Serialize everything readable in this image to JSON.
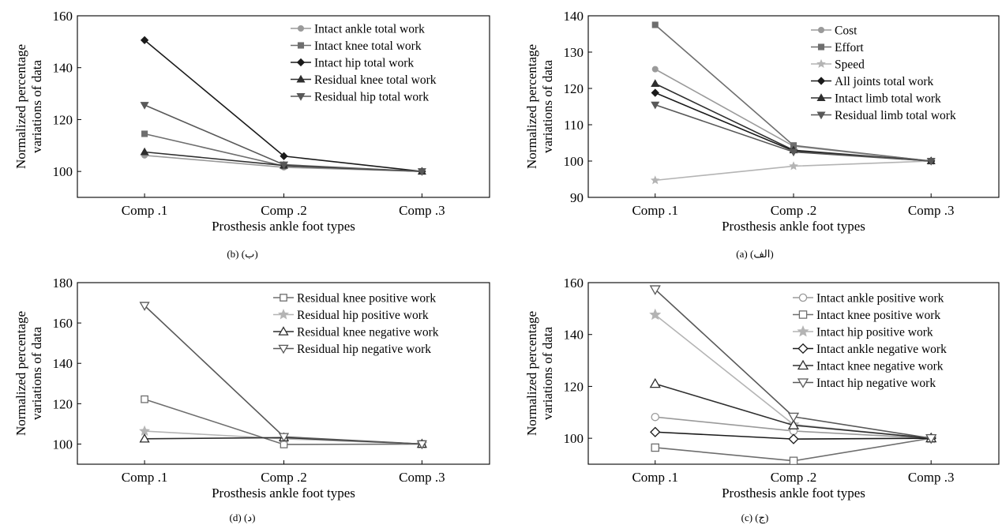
{
  "chart_data": [
    {
      "id": "b",
      "type": "line",
      "caption": "(b) (ب)",
      "xlabel": "Prosthesis ankle foot types",
      "ylabel": [
        "Normalized percentage",
        "variations of data"
      ],
      "categories": [
        "Comp .1",
        "Comp .2",
        "Comp .3"
      ],
      "ylim": [
        90,
        160
      ],
      "yticks": [
        100,
        120,
        140,
        160
      ],
      "legend_position": "top-right",
      "grid": false,
      "series": [
        {
          "name": "Intact ankle total work",
          "values": [
            106.2,
            101.6,
            100
          ],
          "color": "#9a9a9a",
          "marker": "circle",
          "filled": true
        },
        {
          "name": "Intact knee total work",
          "values": [
            114.5,
            102.1,
            100
          ],
          "color": "#6e6e6e",
          "marker": "square",
          "filled": true
        },
        {
          "name": "Intact hip total work",
          "values": [
            150.6,
            105.9,
            100
          ],
          "color": "#1a1a1a",
          "marker": "diamond",
          "filled": true
        },
        {
          "name": "Residual knee total work",
          "values": [
            107.5,
            102.3,
            100
          ],
          "color": "#2e2e2e",
          "marker": "triangle-up",
          "filled": true
        },
        {
          "name": "Residual hip total work",
          "values": [
            125.6,
            102.6,
            100
          ],
          "color": "#585858",
          "marker": "triangle-down",
          "filled": true
        }
      ]
    },
    {
      "id": "a",
      "type": "line",
      "caption": "(a) (الف)",
      "xlabel": "Prosthesis ankle foot types",
      "ylabel": [
        "Normalized percentage",
        "variations of data"
      ],
      "categories": [
        "Comp .1",
        "Comp .2",
        "Comp .3"
      ],
      "ylim": [
        90,
        140
      ],
      "yticks": [
        90,
        100,
        110,
        120,
        130,
        140
      ],
      "legend_position": "top-right",
      "grid": false,
      "series": [
        {
          "name": "Cost",
          "values": [
            125.3,
            104.1,
            100
          ],
          "color": "#9a9a9a",
          "marker": "circle",
          "filled": true
        },
        {
          "name": "Effort",
          "values": [
            137.5,
            104.3,
            100
          ],
          "color": "#6e6e6e",
          "marker": "square",
          "filled": true
        },
        {
          "name": "Speed",
          "values": [
            94.7,
            98.6,
            100
          ],
          "color": "#b4b4b4",
          "marker": "star",
          "filled": true
        },
        {
          "name": "All joints total work",
          "values": [
            118.8,
            102.8,
            100
          ],
          "color": "#1a1a1a",
          "marker": "diamond",
          "filled": true
        },
        {
          "name": "Intact limb total work",
          "values": [
            121.3,
            103.0,
            100
          ],
          "color": "#2e2e2e",
          "marker": "triangle-up",
          "filled": true
        },
        {
          "name": "Residual limb total work",
          "values": [
            115.5,
            102.5,
            100
          ],
          "color": "#585858",
          "marker": "triangle-down",
          "filled": true
        }
      ]
    },
    {
      "id": "d",
      "type": "line",
      "caption": "(d) (د)",
      "xlabel": "Prosthesis ankle foot types",
      "ylabel": [
        "Normalized percentage",
        "variations of data"
      ],
      "categories": [
        "Comp .1",
        "Comp .2",
        "Comp .3"
      ],
      "ylim": [
        90,
        180
      ],
      "yticks": [
        100,
        120,
        140,
        160,
        180
      ],
      "legend_position": "top-right",
      "grid": false,
      "series": [
        {
          "name": "Residual knee positive work",
          "values": [
            122.2,
            99.8,
            100
          ],
          "color": "#6e6e6e",
          "marker": "square",
          "filled": false
        },
        {
          "name": "Residual hip positive work",
          "values": [
            106.4,
            102.6,
            100
          ],
          "color": "#b4b4b4",
          "marker": "star",
          "filled": true
        },
        {
          "name": "Residual knee negative work",
          "values": [
            102.6,
            103.2,
            100
          ],
          "color": "#2e2e2e",
          "marker": "triangle-up",
          "filled": false
        },
        {
          "name": "Residual hip negative work",
          "values": [
            168.6,
            103.6,
            100
          ],
          "color": "#585858",
          "marker": "triangle-down",
          "filled": false
        }
      ]
    },
    {
      "id": "c",
      "type": "line",
      "caption": "(c) (ج)",
      "xlabel": "Prosthesis ankle foot types",
      "ylabel": [
        "Normalized percentage",
        "variations of data"
      ],
      "categories": [
        "Comp .1",
        "Comp .2",
        "Comp .3"
      ],
      "ylim": [
        90,
        160
      ],
      "yticks": [
        100,
        120,
        140,
        160
      ],
      "legend_position": "top-right",
      "grid": false,
      "series": [
        {
          "name": "Intact ankle positive work",
          "values": [
            108.2,
            102.8,
            100
          ],
          "color": "#9a9a9a",
          "marker": "circle",
          "filled": false
        },
        {
          "name": "Intact knee positive work",
          "values": [
            96.4,
            91.3,
            100
          ],
          "color": "#6e6e6e",
          "marker": "square",
          "filled": false
        },
        {
          "name": "Intact hip positive work",
          "values": [
            147.6,
            105.3,
            100
          ],
          "color": "#b4b4b4",
          "marker": "star",
          "filled": true
        },
        {
          "name": "Intact ankle negative work",
          "values": [
            102.4,
            99.7,
            100
          ],
          "color": "#1a1a1a",
          "marker": "diamond",
          "filled": false
        },
        {
          "name": "Intact knee negative work",
          "values": [
            121.0,
            105.0,
            100
          ],
          "color": "#2e2e2e",
          "marker": "triangle-up",
          "filled": false
        },
        {
          "name": "Intact hip negative work",
          "values": [
            157.4,
            108.3,
            100
          ],
          "color": "#585858",
          "marker": "triangle-down",
          "filled": false
        }
      ]
    }
  ]
}
